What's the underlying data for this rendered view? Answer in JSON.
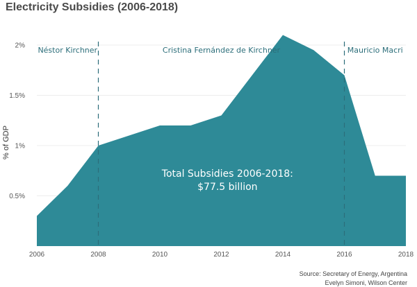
{
  "chart_data": {
    "type": "area",
    "title": "Electricity Subsidies (2006-2018)",
    "ylabel": "% of GDP",
    "xlabel": "",
    "x": [
      2006,
      2007,
      2008,
      2009,
      2010,
      2011,
      2012,
      2013,
      2014,
      2015,
      2016,
      2017,
      2018
    ],
    "values": [
      0.3,
      0.6,
      1.0,
      1.1,
      1.2,
      1.2,
      1.3,
      1.7,
      2.1,
      1.95,
      1.7,
      0.7,
      0.7
    ],
    "xlim": [
      2006,
      2018
    ],
    "ylim": [
      0,
      2.2
    ],
    "x_ticks": [
      2006,
      2008,
      2010,
      2012,
      2014,
      2016,
      2018
    ],
    "x_tick_labels": [
      "2006",
      "2008",
      "2010",
      "2012",
      "2014",
      "2016",
      "2018"
    ],
    "y_ticks": [
      0.5,
      1.0,
      1.5,
      2.0
    ],
    "y_tick_labels": [
      "0.5%",
      "1%",
      "1.5%",
      "2%"
    ],
    "grid": true,
    "fill_color": "#2e8a97",
    "eras": [
      {
        "label": "Néstor Kirchner",
        "start": 2006,
        "end": 2008
      },
      {
        "label": "Cristina Fernández de Kirchner",
        "start": 2008,
        "end": 2016
      },
      {
        "label": "Mauricio Macri",
        "start": 2016,
        "end": 2018
      }
    ],
    "dividers": [
      2008,
      2016
    ],
    "annotation": {
      "line1": "Total Subsidies 2006-2018:",
      "line2": "$77.5 billion",
      "x": 2012.2,
      "y": 0.62
    },
    "source": {
      "line1": "Source: Secretary of Energy, Argentina",
      "line2": "Evelyn Simoni, Wilson Center"
    }
  }
}
